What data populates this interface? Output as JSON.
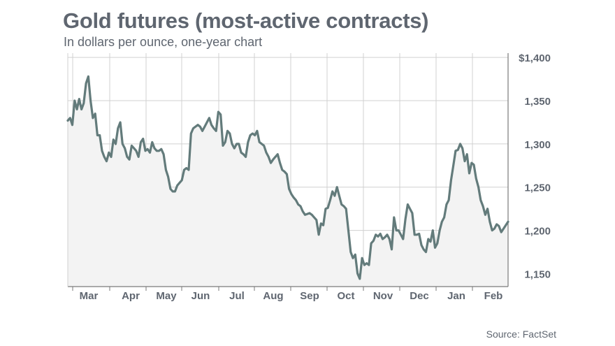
{
  "chart_data": {
    "type": "line",
    "title": "Gold futures (most-active contracts)",
    "subtitle": "In dollars per ounce, one-year chart",
    "source": "Source: FactSet",
    "xlabel": "",
    "ylabel": "",
    "ylim": [
      1135,
      1405
    ],
    "y_ticks": [
      1150,
      1200,
      1250,
      1300,
      1350,
      1400
    ],
    "y_tick_labels": [
      "1,150",
      "1,200",
      "1,250",
      "1,300",
      "1,350",
      "$1,400"
    ],
    "x_tick_labels": [
      "Mar",
      "Apr",
      "May",
      "Jun",
      "Jul",
      "Aug",
      "Sep",
      "Oct",
      "Nov",
      "Dec",
      "Jan",
      "Feb"
    ],
    "grid": true,
    "colors": {
      "line": "#637b7b",
      "area": "#f3f3f3",
      "grid": "#d0d0d0",
      "text": "#5f6670"
    },
    "series": [
      {
        "values": [
          1327,
          1330,
          1322,
          1350,
          1340,
          1352,
          1340,
          1347,
          1370,
          1378,
          1350,
          1330,
          1335,
          1310,
          1310,
          1292,
          1285,
          1280,
          1290,
          1285,
          1305,
          1300,
          1318,
          1325,
          1300,
          1295,
          1285,
          1282,
          1298,
          1295,
          1292,
          1285,
          1302,
          1306,
          1292,
          1294,
          1290,
          1302,
          1295,
          1292,
          1292,
          1294,
          1288,
          1270,
          1262,
          1248,
          1245,
          1245,
          1252,
          1255,
          1258,
          1270,
          1272,
          1270,
          1312,
          1318,
          1320,
          1322,
          1320,
          1315,
          1320,
          1325,
          1330,
          1322,
          1318,
          1315,
          1337,
          1334,
          1298,
          1302,
          1315,
          1312,
          1300,
          1295,
          1300,
          1300,
          1290,
          1288,
          1285,
          1302,
          1310,
          1312,
          1310,
          1315,
          1302,
          1300,
          1298,
          1290,
          1285,
          1278,
          1282,
          1285,
          1288,
          1278,
          1270,
          1268,
          1265,
          1248,
          1242,
          1238,
          1235,
          1230,
          1228,
          1222,
          1218,
          1219,
          1220,
          1218,
          1215,
          1212,
          1195,
          1208,
          1206,
          1225,
          1226,
          1235,
          1245,
          1240,
          1250,
          1240,
          1230,
          1228,
          1225,
          1200,
          1175,
          1168,
          1172,
          1150,
          1144,
          1168,
          1160,
          1162,
          1160,
          1185,
          1188,
          1195,
          1193,
          1196,
          1190,
          1192,
          1195,
          1190,
          1178,
          1215,
          1200,
          1200,
          1195,
          1190,
          1213,
          1230,
          1225,
          1220,
          1195,
          1195,
          1196,
          1183,
          1178,
          1175,
          1190,
          1187,
          1200,
          1180,
          1185,
          1200,
          1210,
          1215,
          1230,
          1235,
          1258,
          1275,
          1292,
          1293,
          1300,
          1295,
          1280,
          1288,
          1266,
          1278,
          1276,
          1260,
          1250,
          1235,
          1228,
          1218,
          1225,
          1210,
          1200,
          1202,
          1207,
          1205,
          1198,
          1202,
          1206,
          1210
        ]
      }
    ]
  }
}
